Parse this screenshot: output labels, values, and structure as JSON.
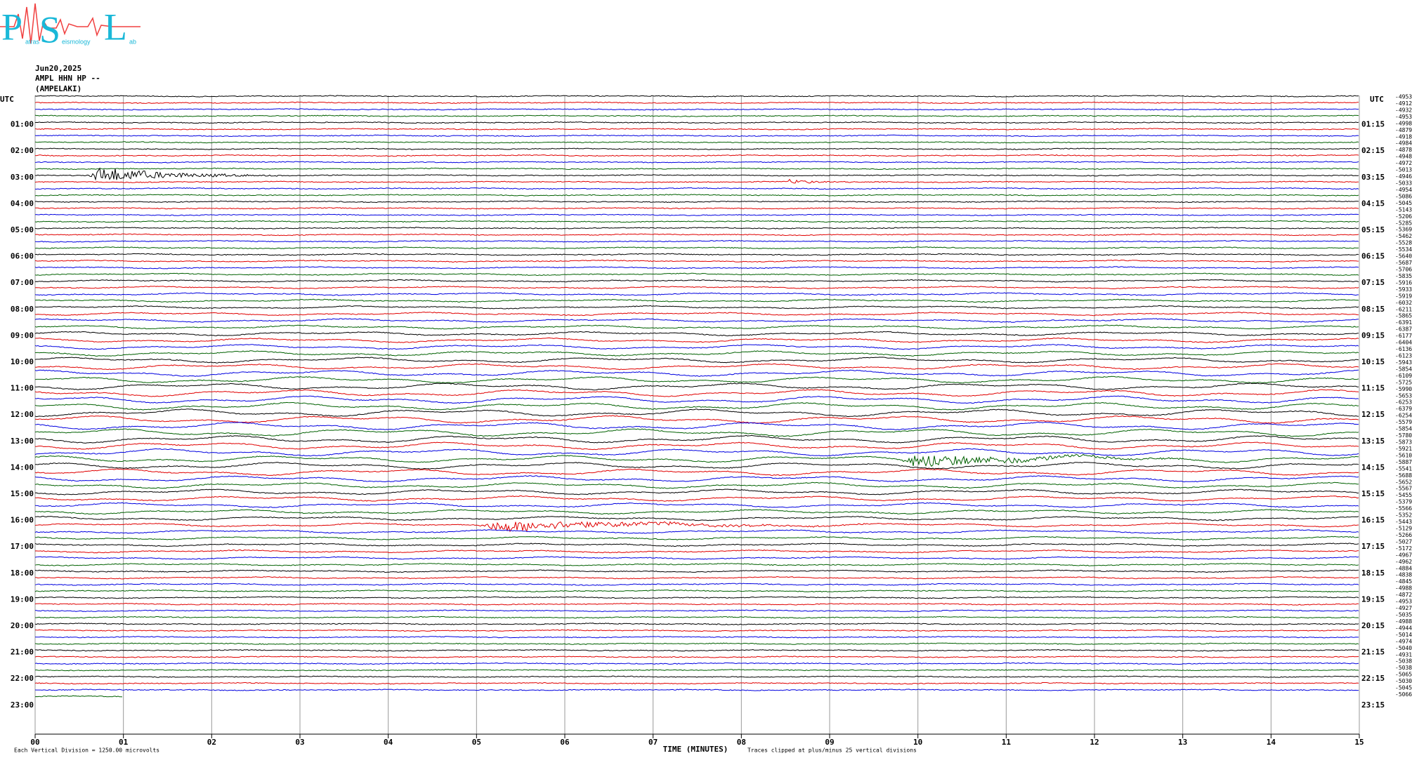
{
  "logo": {
    "letters": [
      "P",
      "S",
      "L"
    ],
    "words": [
      "atras",
      "eismology",
      "ab"
    ]
  },
  "chart_data": {
    "type": "helicorder",
    "header": [
      "Jun20,2025",
      "AMPL HHN HP --",
      "(AMPELAKI)"
    ],
    "utc_label": "UTC",
    "left_labels": [
      "01:00",
      "02:00",
      "03:00",
      "04:00",
      "05:00",
      "06:00",
      "07:00",
      "08:00",
      "09:00",
      "10:00",
      "11:00",
      "12:00",
      "13:00",
      "14:00",
      "15:00",
      "16:00",
      "17:00",
      "18:00",
      "19:00",
      "20:00",
      "21:00",
      "22:00",
      "23:00"
    ],
    "right_labels": [
      "01:15",
      "02:15",
      "03:15",
      "04:15",
      "05:15",
      "06:15",
      "07:15",
      "08:15",
      "09:15",
      "10:15",
      "11:15",
      "12:15",
      "13:15",
      "14:15",
      "15:15",
      "16:15",
      "17:15",
      "18:15",
      "19:15",
      "20:15",
      "21:15",
      "22:15",
      "23:15"
    ],
    "trace_offsets": [
      -4953,
      -4912,
      -4932,
      -4953,
      -4998,
      -4879,
      -4918,
      -4984,
      -4878,
      -4948,
      -4972,
      -5013,
      -4946,
      -5033,
      -4954,
      -5086,
      -5045,
      -5143,
      -5206,
      -5285,
      -5369,
      -5462,
      -5528,
      -5534,
      -5640,
      -5687,
      -5706,
      -5835,
      -5916,
      -5933,
      -5919,
      -6032,
      -6211,
      -5865,
      -6391,
      -6387,
      -6177,
      -6404,
      -6136,
      -6123,
      -5943,
      -5854,
      -6109,
      -5725,
      -5990,
      -5653,
      -6253,
      -6379,
      -6254,
      -5579,
      -5854,
      -5780,
      -5873,
      -5921,
      -5610,
      -5887,
      -5541,
      -5688,
      -5652,
      -5567,
      -5455,
      -5379,
      -5566,
      -5352,
      -5443,
      -5129,
      -5266,
      -5027,
      -5172,
      -4967,
      -4962,
      -4884,
      -4838,
      -4845,
      -4988,
      -4872,
      -4953,
      -4927,
      -5035,
      -4988,
      -4944,
      -5014,
      -4974,
      -5040,
      -4931,
      -5038,
      -5038,
      -5065,
      -5030,
      -5045,
      -5066
    ],
    "trace_colors": [
      "#000000",
      "#e00000",
      "#0000e0",
      "#006000"
    ],
    "data_end_minute": 1,
    "xlim": [
      0,
      15
    ],
    "xticks": [
      {
        "value": 0,
        "label": "00"
      },
      {
        "value": 1,
        "label": "01"
      },
      {
        "value": 2,
        "label": "02"
      },
      {
        "value": 3,
        "label": "03"
      },
      {
        "value": 4,
        "label": "04"
      },
      {
        "value": 5,
        "label": "05"
      },
      {
        "value": 6,
        "label": "06"
      },
      {
        "value": 7,
        "label": "07"
      },
      {
        "value": 8,
        "label": "08"
      },
      {
        "value": 9,
        "label": "09"
      },
      {
        "value": 10,
        "label": "10"
      },
      {
        "value": 11,
        "label": "11"
      },
      {
        "value": 12,
        "label": "12"
      },
      {
        "value": 13,
        "label": "13"
      },
      {
        "value": 14,
        "label": "14"
      },
      {
        "value": 15,
        "label": "15"
      }
    ],
    "xlabel": "TIME (MINUTES)",
    "scale_note": "Each Vertical Division = 1250.00 microvolts",
    "clip_note": "Traces clipped at plus/minus 25 vertical divisions"
  }
}
